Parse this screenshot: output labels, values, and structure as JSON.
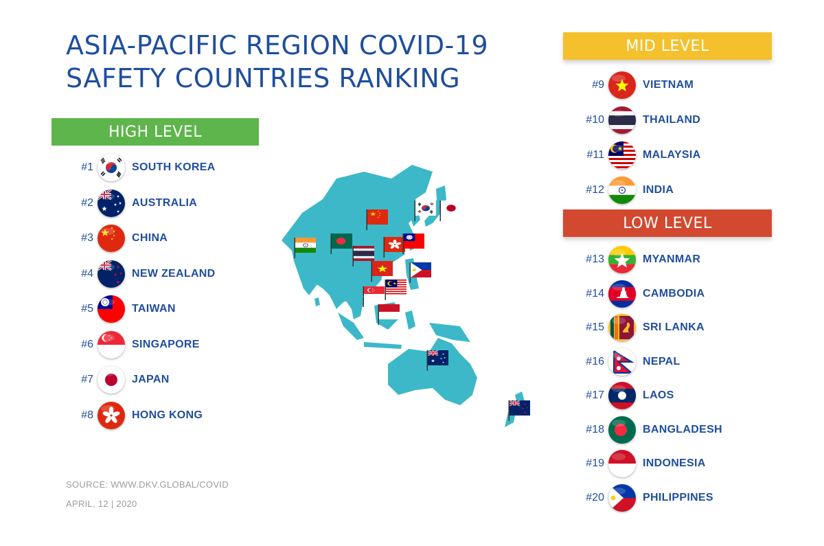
{
  "title_line1": "ASIA-PACIFIC REGION COVID-19",
  "title_line2": "SAFETY COUNTRIES RANKING",
  "high": {
    "label": "HIGH LEVEL",
    "color": "#5eb54b"
  },
  "mid": {
    "label": "MID LEVEL",
    "color": "#f4c12d"
  },
  "low": {
    "label": "LOW LEVEL",
    "color": "#d2492f"
  },
  "text_color": "#1f4e9c",
  "map_color": "#3db8c8",
  "high_list": [
    {
      "rank": "#1",
      "name": "SOUTH KOREA",
      "flag": "kr"
    },
    {
      "rank": "#2",
      "name": "AUSTRALIA",
      "flag": "au"
    },
    {
      "rank": "#3",
      "name": "CHINA",
      "flag": "cn"
    },
    {
      "rank": "#4",
      "name": "NEW ZEALAND",
      "flag": "nz"
    },
    {
      "rank": "#5",
      "name": "TAIWAN",
      "flag": "tw"
    },
    {
      "rank": "#6",
      "name": "SINGAPORE",
      "flag": "sg"
    },
    {
      "rank": "#7",
      "name": "JAPAN",
      "flag": "jp"
    },
    {
      "rank": "#8",
      "name": "HONG KONG",
      "flag": "hk"
    }
  ],
  "mid_list": [
    {
      "rank": "#9",
      "name": "VIETNAM",
      "flag": "vn"
    },
    {
      "rank": "#10",
      "name": "THAILAND",
      "flag": "th"
    },
    {
      "rank": "#11",
      "name": "MALAYSIA",
      "flag": "my"
    },
    {
      "rank": "#12",
      "name": "INDIA",
      "flag": "in"
    }
  ],
  "low_list": [
    {
      "rank": "#13",
      "name": "MYANMAR",
      "flag": "mm"
    },
    {
      "rank": "#14",
      "name": "CAMBODIA",
      "flag": "kh"
    },
    {
      "rank": "#15",
      "name": "SRI LANKA",
      "flag": "lk"
    },
    {
      "rank": "#16",
      "name": "NEPAL",
      "flag": "np"
    },
    {
      "rank": "#17",
      "name": "LAOS",
      "flag": "la"
    },
    {
      "rank": "#18",
      "name": "BANGLADESH",
      "flag": "bd"
    },
    {
      "rank": "#19",
      "name": "INDONESIA",
      "flag": "id"
    },
    {
      "rank": "#20",
      "name": "PHILIPPINES",
      "flag": "ph"
    }
  ],
  "source": "SOURCE: WWW.DKV.GLOBAL/COVID",
  "date": "APRIL, 12 | 2020"
}
